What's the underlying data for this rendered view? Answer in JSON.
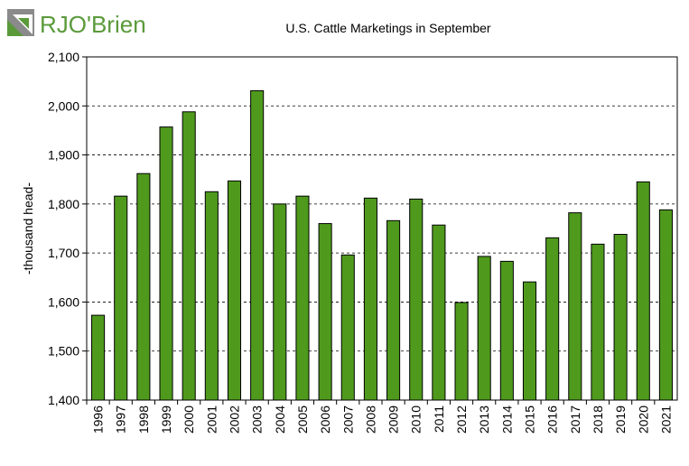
{
  "logo": {
    "text": "RJO'Brien"
  },
  "colors": {
    "bar": "#4f9a1d",
    "logo_green": "#5a9a3a",
    "logo_gray": "#8a8a8a"
  },
  "chart_data": {
    "type": "bar",
    "title": "U.S. Cattle Marketings in September",
    "xlabel": "",
    "ylabel": "-thousand head-",
    "ylim": [
      1400,
      2100
    ],
    "yticks": [
      1400,
      1500,
      1600,
      1700,
      1800,
      1900,
      2000,
      2100
    ],
    "ytick_labels": [
      "1,400",
      "1,500",
      "1,600",
      "1,700",
      "1,800",
      "1,900",
      "2,000",
      "2,100"
    ],
    "grid": true,
    "categories": [
      "1996",
      "1997",
      "1998",
      "1999",
      "2000",
      "2001",
      "2002",
      "2003",
      "2004",
      "2005",
      "2006",
      "2007",
      "2008",
      "2009",
      "2010",
      "2011",
      "2012",
      "2013",
      "2014",
      "2015",
      "2016",
      "2017",
      "2018",
      "2019",
      "2020",
      "2021"
    ],
    "values": [
      1573,
      1816,
      1862,
      1957,
      1988,
      1825,
      1847,
      2031,
      1800,
      1816,
      1760,
      1696,
      1812,
      1766,
      1810,
      1757,
      1599,
      1693,
      1683,
      1641,
      1731,
      1782,
      1718,
      1738,
      1845,
      1788
    ]
  }
}
